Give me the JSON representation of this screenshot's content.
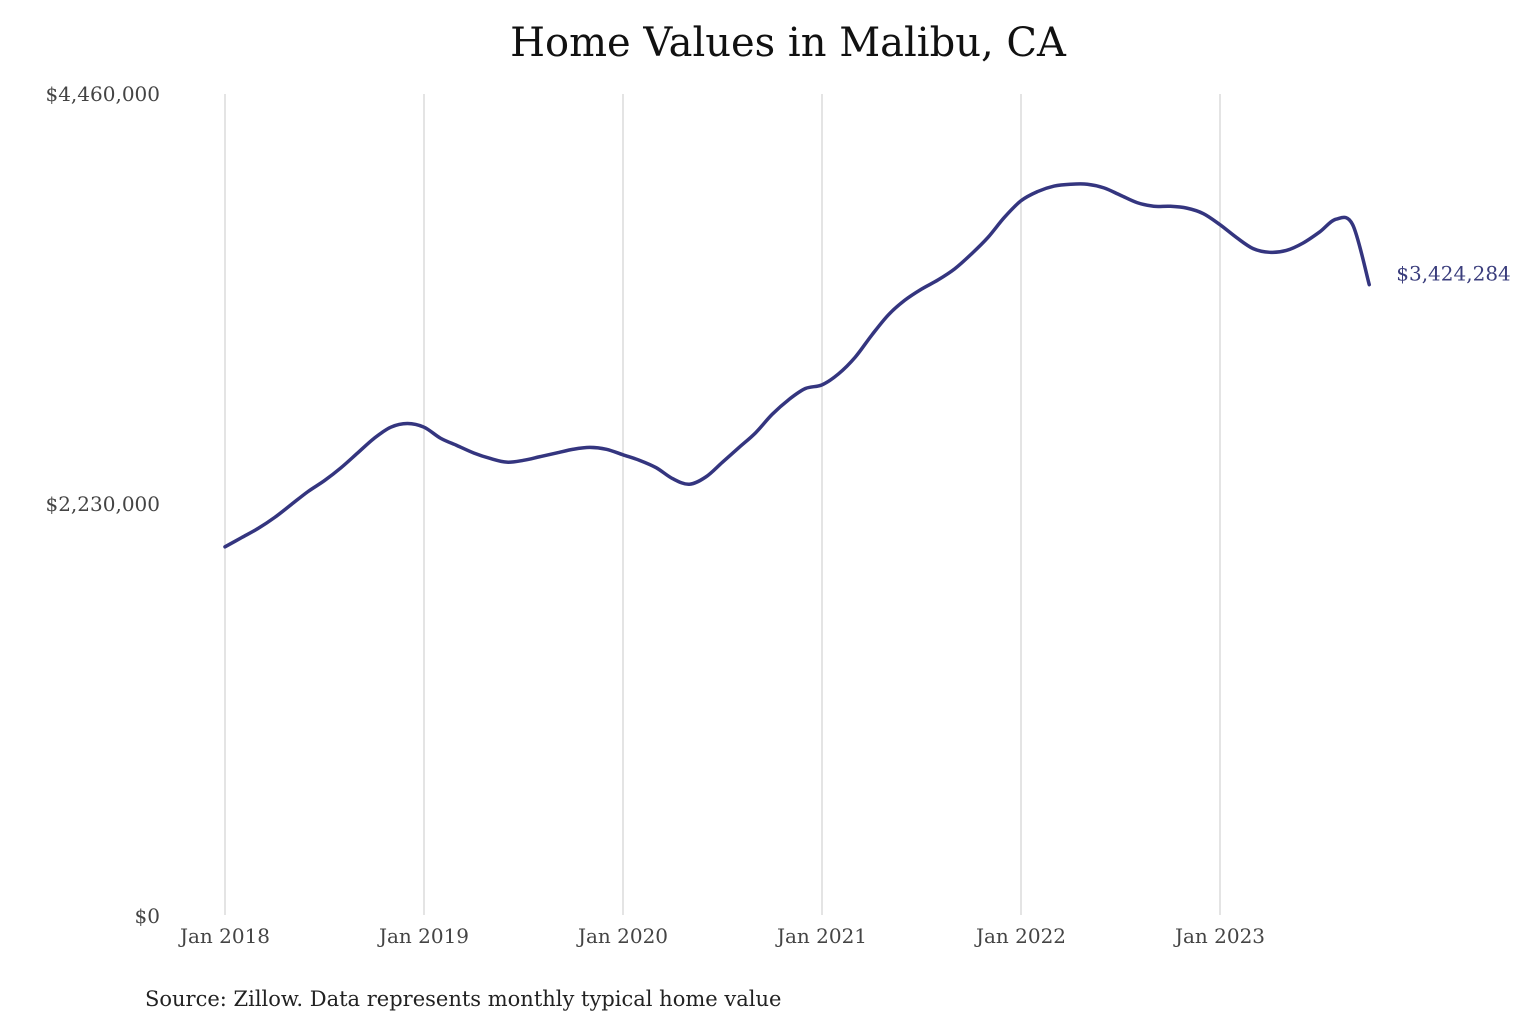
{
  "chart_data": {
    "type": "line",
    "title": "Home Values in Malibu, CA",
    "source": "Source: Zillow. Data represents monthly typical home value",
    "x_labels": [
      "Jan 2018",
      "Jan 2019",
      "Jan 2020",
      "Jan 2021",
      "Jan 2022",
      "Jan 2023"
    ],
    "y_tick_labels": [
      "$4,460,000",
      "$2,230,000",
      "$0"
    ],
    "y_ticks": [
      4460000,
      2230000,
      0
    ],
    "ylim": [
      0,
      4460000
    ],
    "xlim_months": [
      0,
      69
    ],
    "grid": "vertical",
    "legend": "none",
    "line_color": "#34357f",
    "end_label": "$3,424,284",
    "series": [
      {
        "x_start": "Jan 2018",
        "interval": "month",
        "values": [
          2000000,
          2050000,
          2100000,
          2160000,
          2230000,
          2300000,
          2360000,
          2430000,
          2510000,
          2590000,
          2650000,
          2670000,
          2650000,
          2590000,
          2550000,
          2510000,
          2480000,
          2460000,
          2470000,
          2490000,
          2510000,
          2530000,
          2540000,
          2530000,
          2500000,
          2470000,
          2430000,
          2370000,
          2340000,
          2380000,
          2460000,
          2540000,
          2620000,
          2720000,
          2800000,
          2860000,
          2880000,
          2940000,
          3030000,
          3150000,
          3260000,
          3340000,
          3400000,
          3450000,
          3510000,
          3590000,
          3680000,
          3790000,
          3880000,
          3930000,
          3960000,
          3970000,
          3970000,
          3950000,
          3910000,
          3870000,
          3850000,
          3850000,
          3840000,
          3810000,
          3750000,
          3680000,
          3620000,
          3600000,
          3610000,
          3650000,
          3710000,
          3780000,
          3750000,
          3424284
        ]
      }
    ]
  }
}
